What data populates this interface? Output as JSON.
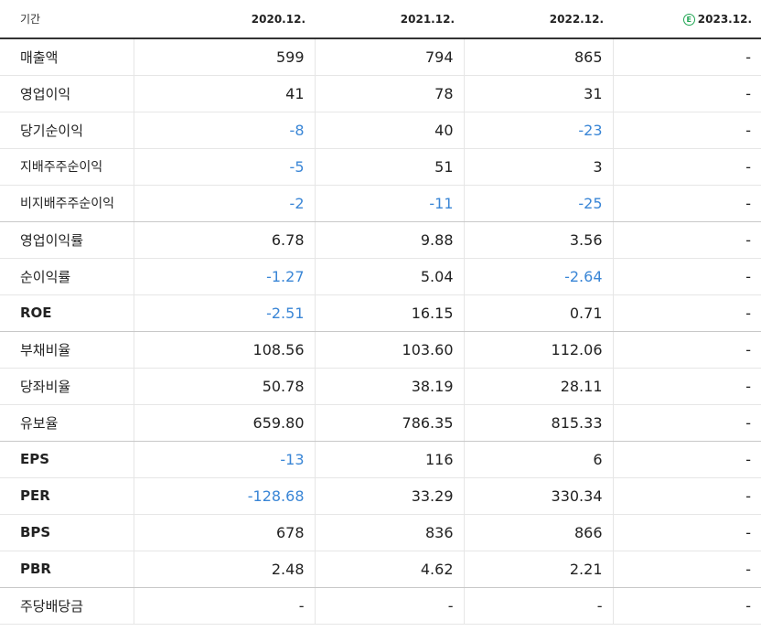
{
  "header": {
    "label": "기간",
    "periods": [
      "2020.12.",
      "2021.12.",
      "2022.12.",
      "2023.12."
    ],
    "estimate_badge": "E"
  },
  "rows": [
    {
      "label": "매출액",
      "values": [
        "599",
        "794",
        "865",
        "-"
      ]
    },
    {
      "label": "영업이익",
      "values": [
        "41",
        "78",
        "31",
        "-"
      ]
    },
    {
      "label": "당기순이익",
      "values": [
        "-8",
        "40",
        "-23",
        "-"
      ]
    },
    {
      "label": "지배주주순이익",
      "values": [
        "-5",
        "51",
        "3",
        "-"
      ]
    },
    {
      "label": "비지배주주순이익",
      "values": [
        "-2",
        "-11",
        "-25",
        "-"
      ]
    },
    {
      "label": "영업이익률",
      "values": [
        "6.78",
        "9.88",
        "3.56",
        "-"
      ]
    },
    {
      "label": "순이익률",
      "values": [
        "-1.27",
        "5.04",
        "-2.64",
        "-"
      ]
    },
    {
      "label": "ROE",
      "values": [
        "-2.51",
        "16.15",
        "0.71",
        "-"
      ]
    },
    {
      "label": "부채비율",
      "values": [
        "108.56",
        "103.60",
        "112.06",
        "-"
      ]
    },
    {
      "label": "당좌비율",
      "values": [
        "50.78",
        "38.19",
        "28.11",
        "-"
      ]
    },
    {
      "label": "유보율",
      "values": [
        "659.80",
        "786.35",
        "815.33",
        "-"
      ]
    },
    {
      "label": "EPS",
      "values": [
        "-13",
        "116",
        "6",
        "-"
      ]
    },
    {
      "label": "PER",
      "values": [
        "-128.68",
        "33.29",
        "330.34",
        "-"
      ]
    },
    {
      "label": "BPS",
      "values": [
        "678",
        "836",
        "866",
        "-"
      ]
    },
    {
      "label": "PBR",
      "values": [
        "2.48",
        "4.62",
        "2.21",
        "-"
      ]
    },
    {
      "label": "주당배당금",
      "values": [
        "-",
        "-",
        "-",
        "-"
      ]
    }
  ],
  "colors": {
    "negative": "#3a86d6",
    "estimate": "#22a654"
  }
}
